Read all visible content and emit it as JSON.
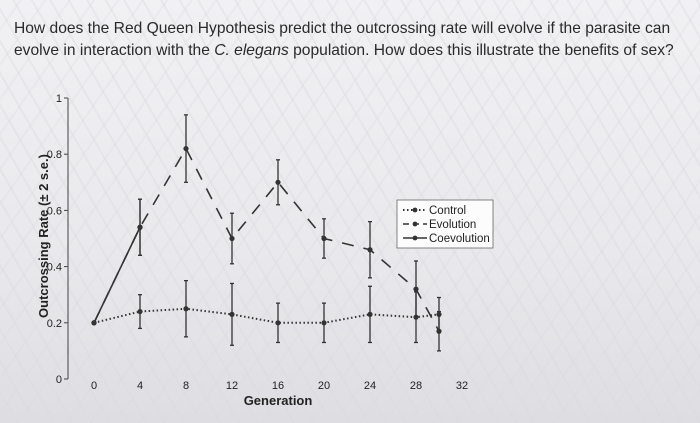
{
  "question": {
    "line1": "How does the Red Queen Hypothesis predict the outcrossing rate will evolve if the parasite can",
    "line2_pre": "evolve in interaction with the ",
    "line2_em": "C. elegans",
    "line2_post": " population. How does this illustrate the benefits of sex?"
  },
  "chart_data": {
    "type": "line",
    "title": "",
    "xlabel": "Generation",
    "ylabel": "Outcrossing Rate (± 2 s.e.)",
    "xlim": [
      0,
      32
    ],
    "ylim": [
      0,
      1
    ],
    "x_ticks": [
      "0",
      "4",
      "8",
      "12",
      "16",
      "20",
      "24",
      "28",
      "32"
    ],
    "y_ticks": [
      "0",
      "0.2",
      "0.4",
      "0.6",
      "0.8",
      "1"
    ],
    "grid": false,
    "legend_position": "right",
    "series": [
      {
        "name": "Control",
        "style": "dotted",
        "color": "#333333",
        "x": [
          0,
          4,
          8,
          12,
          16,
          20,
          24,
          28,
          30
        ],
        "y": [
          0.2,
          0.24,
          0.25,
          0.23,
          0.2,
          0.2,
          0.23,
          0.22,
          0.23
        ],
        "err": [
          0,
          0.06,
          0.1,
          0.11,
          0.07,
          0.07,
          0.1,
          0.09,
          0.06
        ]
      },
      {
        "name": "Evolution",
        "style": "dashed",
        "color": "#333333",
        "x": [
          0,
          4,
          8,
          12,
          16,
          20,
          24,
          28,
          30
        ],
        "y": [
          0.2,
          0.54,
          0.82,
          0.5,
          0.7,
          0.5,
          0.46,
          0.32,
          0.17
        ],
        "err": [
          0,
          0.1,
          0.12,
          0.09,
          0.08,
          0.07,
          0.1,
          0.1,
          0.07
        ]
      },
      {
        "name": "Coevolution",
        "style": "solid",
        "color": "#333333",
        "x": [
          0,
          4
        ],
        "y": [
          0.2,
          0.54
        ],
        "err": [
          0,
          0.1
        ]
      }
    ]
  }
}
